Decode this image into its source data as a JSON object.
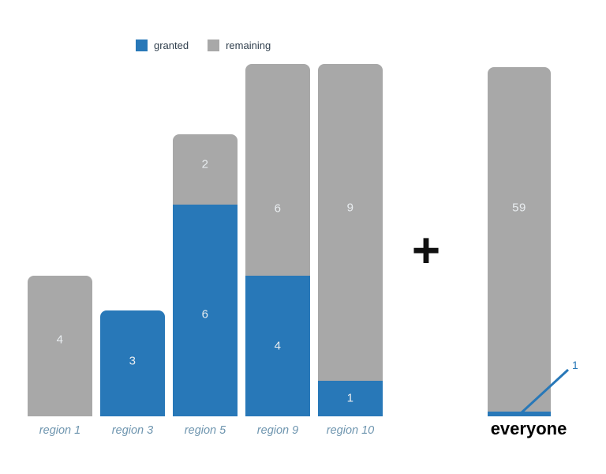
{
  "legend": {
    "items": [
      {
        "label": "granted",
        "color": "#2878b8"
      },
      {
        "label": "remaining",
        "color": "#a8a8a8"
      }
    ]
  },
  "operator": {
    "symbol": "+"
  },
  "chart_data": [
    {
      "type": "bar",
      "stacked": true,
      "orientation": "vertical",
      "categories": [
        "region 1",
        "region 3",
        "region 5",
        "region 9",
        "region 10"
      ],
      "series": [
        {
          "name": "granted",
          "color": "#2878b8",
          "values": [
            0,
            3,
            6,
            4,
            1
          ]
        },
        {
          "name": "remaining",
          "color": "#a8a8a8",
          "values": [
            4,
            0,
            2,
            6,
            9
          ]
        }
      ],
      "totals": [
        4,
        3,
        8,
        10,
        10
      ],
      "value_labels": {
        "position": "inside",
        "color": "#e9edf0",
        "hide_zero": true
      },
      "legend_position": "top",
      "grid": false,
      "axes": {
        "x_visible": true,
        "y_visible": false
      }
    },
    {
      "type": "bar",
      "stacked": true,
      "orientation": "vertical",
      "categories": [
        "everyone"
      ],
      "series": [
        {
          "name": "granted",
          "color": "#2878b8",
          "values": [
            1
          ]
        },
        {
          "name": "remaining",
          "color": "#a8a8a8",
          "values": [
            59
          ]
        }
      ],
      "totals": [
        60
      ],
      "value_labels": {
        "position": "inside",
        "color": "#e9edf0",
        "shown_for": [
          "remaining"
        ]
      },
      "callout": {
        "label": "1",
        "series": "granted",
        "color": "#2878b8"
      },
      "grid": false,
      "axes": {
        "x_visible": true,
        "y_visible": false
      }
    }
  ]
}
